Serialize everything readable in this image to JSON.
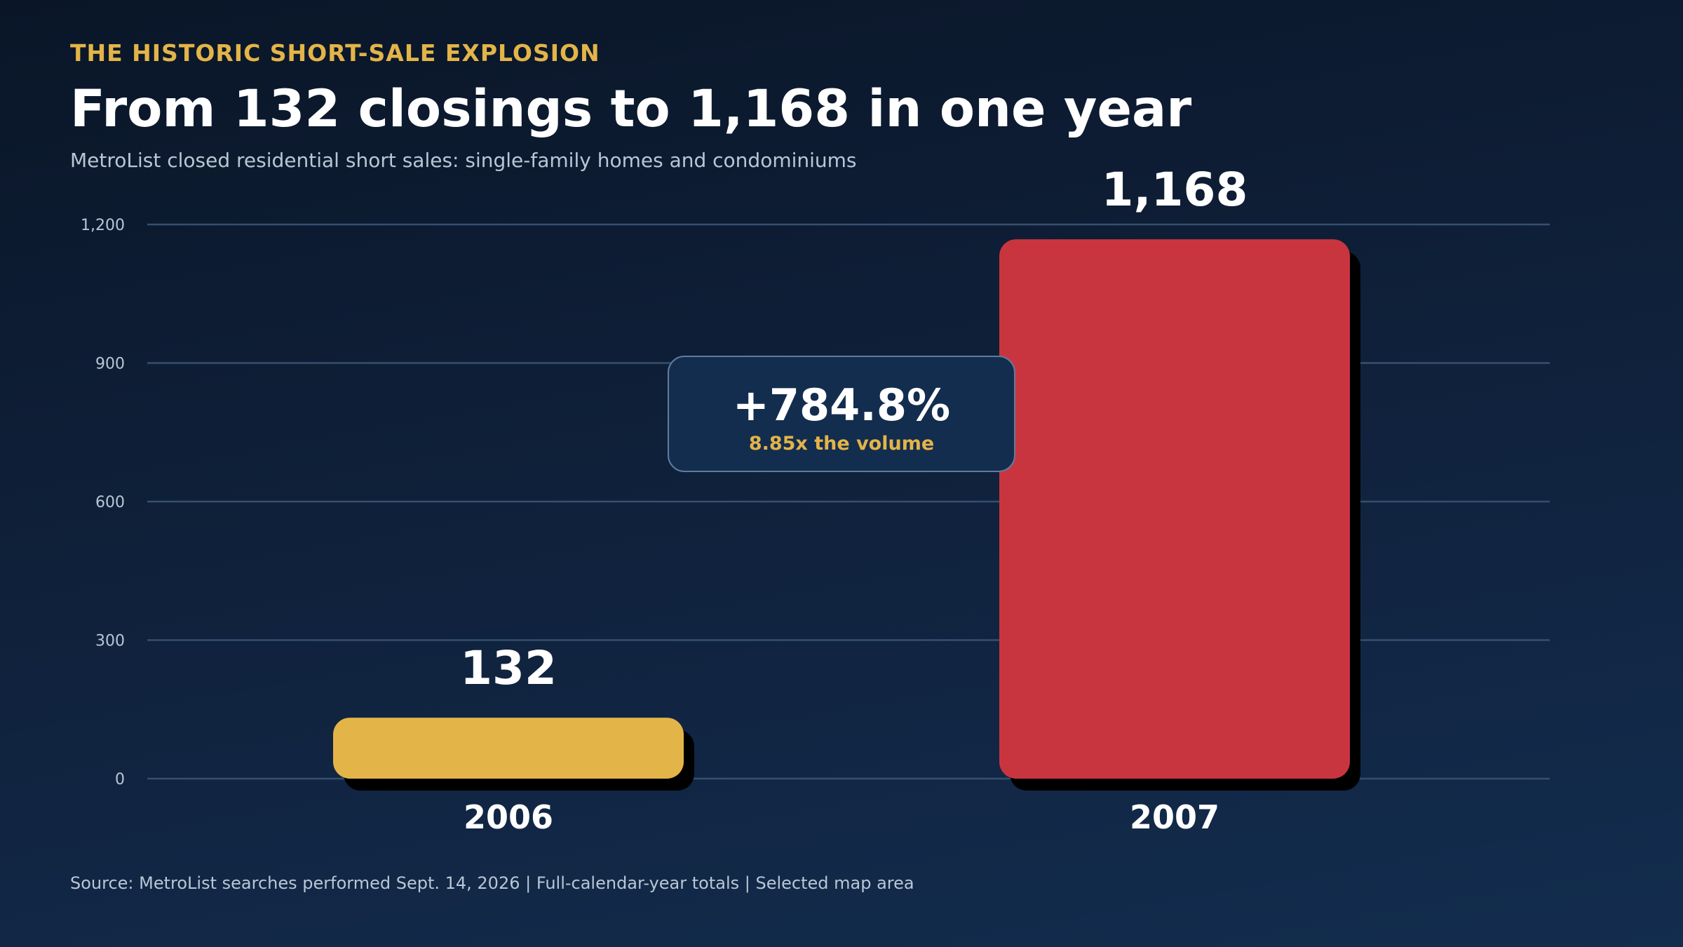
{
  "header": {
    "kicker": "THE HISTORIC SHORT-SALE EXPLOSION",
    "title": "From 132 closings to 1,168 in one year",
    "subtitle": "MetroList closed residential short sales: single-family homes and condominiums"
  },
  "callout": {
    "change": "+784.8%",
    "multiple": "8.85x the volume"
  },
  "source": "Source: MetroList searches performed Sept. 14, 2026 | Full-calendar-year totals | Selected map area",
  "colors": {
    "bar_2006": "#e3b448",
    "bar_2007": "#c9353f",
    "gridline": "#34506f",
    "accent": "#e3b448"
  },
  "chart_data": {
    "type": "bar",
    "categories": [
      "2006",
      "2007"
    ],
    "values": [
      132,
      1168
    ],
    "value_labels": [
      "132",
      "1,168"
    ],
    "ylim": [
      0,
      1200
    ],
    "yticks": [
      0,
      300,
      600,
      900,
      1200
    ],
    "ytick_labels": [
      "0",
      "300",
      "600",
      "900",
      "1,200"
    ],
    "grid": true,
    "legend": "none"
  }
}
